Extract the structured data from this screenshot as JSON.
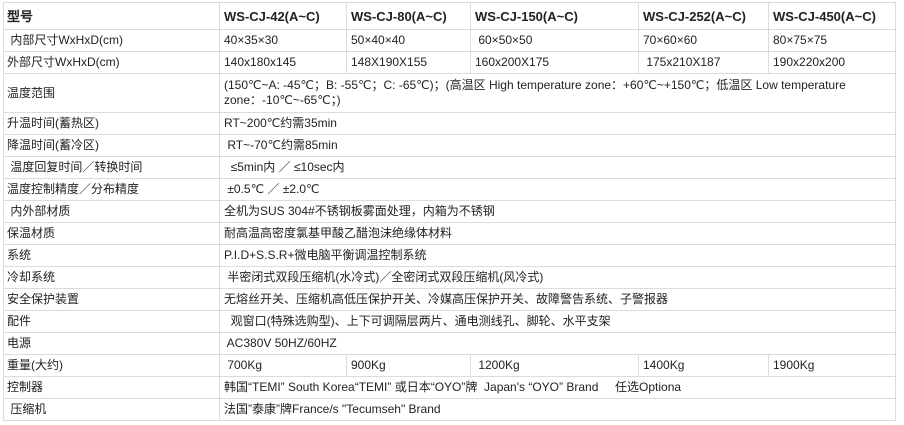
{
  "header": {
    "label": "型号",
    "models": [
      "WS-CJ-42(A~C)",
      "WS-CJ-80(A~C)",
      "WS-CJ-150(A~C)",
      "WS-CJ-252(A~C)",
      "WS-CJ-450(A~C)"
    ]
  },
  "inner_size": {
    "label": " 内部尺寸WxHxD(cm)",
    "values": [
      "40×35×30",
      "50×40×40",
      " 60×50×50",
      "70×60×60",
      "80×75×75"
    ]
  },
  "outer_size": {
    "label": "外部尺寸WxHxD(cm)",
    "values": [
      "140x180x145",
      "148X190X155",
      "160x200X175",
      " 175x210X187",
      "190x220x200"
    ]
  },
  "temp_range": {
    "label": "温度范围",
    "value": "(150℃~A: -45℃；B: -55℃；C: -65℃)；(高温区 High temperature zone：+60℃~+150℃；低温区 Low temperature zone：-10℃~-65℃；)"
  },
  "heat_time": {
    "label": "升温时间(蓄热区)",
    "value": "RT~200℃约需35min"
  },
  "cool_time": {
    "label": "降温时间(蓄冷区)",
    "value": " RT~-70℃约需85min"
  },
  "recovery": {
    "label": " 温度回复时间／转换时间",
    "value": "  ≤5min内 ／ ≤10sec内"
  },
  "accuracy": {
    "label": "温度控制精度／分布精度",
    "value": " ±0.5℃ ／ ±2.0℃"
  },
  "material": {
    "label": " 内外部材质",
    "value": "全机为SUS 304#不锈钢板雾面处理，内箱为不锈钢"
  },
  "insulation": {
    "label": "保温材质",
    "value": "耐高温高密度氯基甲酸乙醋泡沫绝缘体材料"
  },
  "system": {
    "label": "系统",
    "value": "P.I.D+S.S.R+微电脑平衡调温控制系统"
  },
  "cooling": {
    "label": "冷却系统",
    "value": " 半密闭式双段压缩机(水冷式)／全密闭式双段压缩机(风冷式)"
  },
  "safety": {
    "label": "安全保护装置",
    "value": "无熔丝开关、压缩机高低压保护开关、冷媒高压保护开关、故障警告系统、子警报器"
  },
  "accessories": {
    "label": "配件",
    "value": "  观窗口(特殊选购型)、上下可调隔层两片、通电测线孔、脚轮、水平支架"
  },
  "power": {
    "label": "电源",
    "value": " AC380V 50HZ/60HZ"
  },
  "weight": {
    "label": "重量(大约)",
    "values": [
      " 700Kg",
      "900Kg",
      " 1200Kg",
      "1400Kg",
      "1900Kg"
    ]
  },
  "controller": {
    "label": "控制器",
    "value": "韩国“TEMI” South Korea“TEMI” 或日本“OYO”牌  Japan's “OYO” Brand     任选Optiona"
  },
  "compressor": {
    "label": " 压缩机",
    "value": "法国”泰康”牌France/s \"Tecumseh\" Brand"
  }
}
